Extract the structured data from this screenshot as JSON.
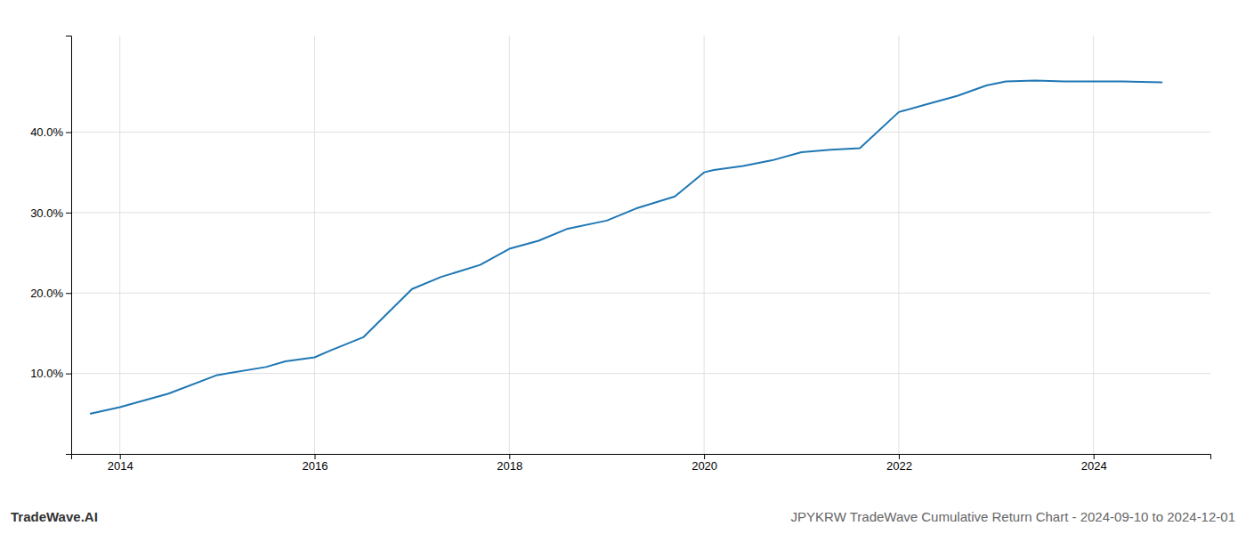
{
  "chart_data": {
    "type": "line",
    "title": "JPYKRW TradeWave Cumulative Return Chart - 2024-09-10 to 2024-12-01",
    "annotations": [
      "TradeWave.AI"
    ],
    "x": [
      2013.7,
      2014.0,
      2014.5,
      2015.0,
      2015.5,
      2015.7,
      2016.0,
      2016.15,
      2016.5,
      2017.0,
      2017.3,
      2017.7,
      2018.0,
      2018.3,
      2018.6,
      2019.0,
      2019.3,
      2019.7,
      2020.0,
      2020.1,
      2020.4,
      2020.7,
      2021.0,
      2021.3,
      2021.6,
      2022.0,
      2022.3,
      2022.6,
      2022.9,
      2023.1,
      2023.4,
      2023.7,
      2024.0,
      2024.3,
      2024.7
    ],
    "values": [
      5.0,
      5.8,
      7.5,
      9.8,
      10.8,
      11.5,
      12.0,
      12.8,
      14.5,
      20.5,
      22.0,
      23.5,
      25.5,
      26.5,
      28.0,
      29.0,
      30.5,
      32.0,
      35.0,
      35.3,
      35.8,
      36.5,
      37.5,
      37.8,
      38.0,
      42.5,
      43.5,
      44.5,
      45.8,
      46.3,
      46.4,
      46.3,
      46.3,
      46.3,
      46.2
    ],
    "color": "#1f77b4",
    "xlim": [
      2013.5,
      2025.2
    ],
    "ylim": [
      0.0,
      52.0
    ],
    "xticks": [
      2014,
      2016,
      2018,
      2020,
      2022,
      2024
    ],
    "yticks": [
      {
        "value": 10.0,
        "label": "10.0%"
      },
      {
        "value": 20.0,
        "label": "20.0%"
      },
      {
        "value": 30.0,
        "label": "30.0%"
      },
      {
        "value": 40.0,
        "label": "40.0%"
      }
    ],
    "grid": true
  }
}
